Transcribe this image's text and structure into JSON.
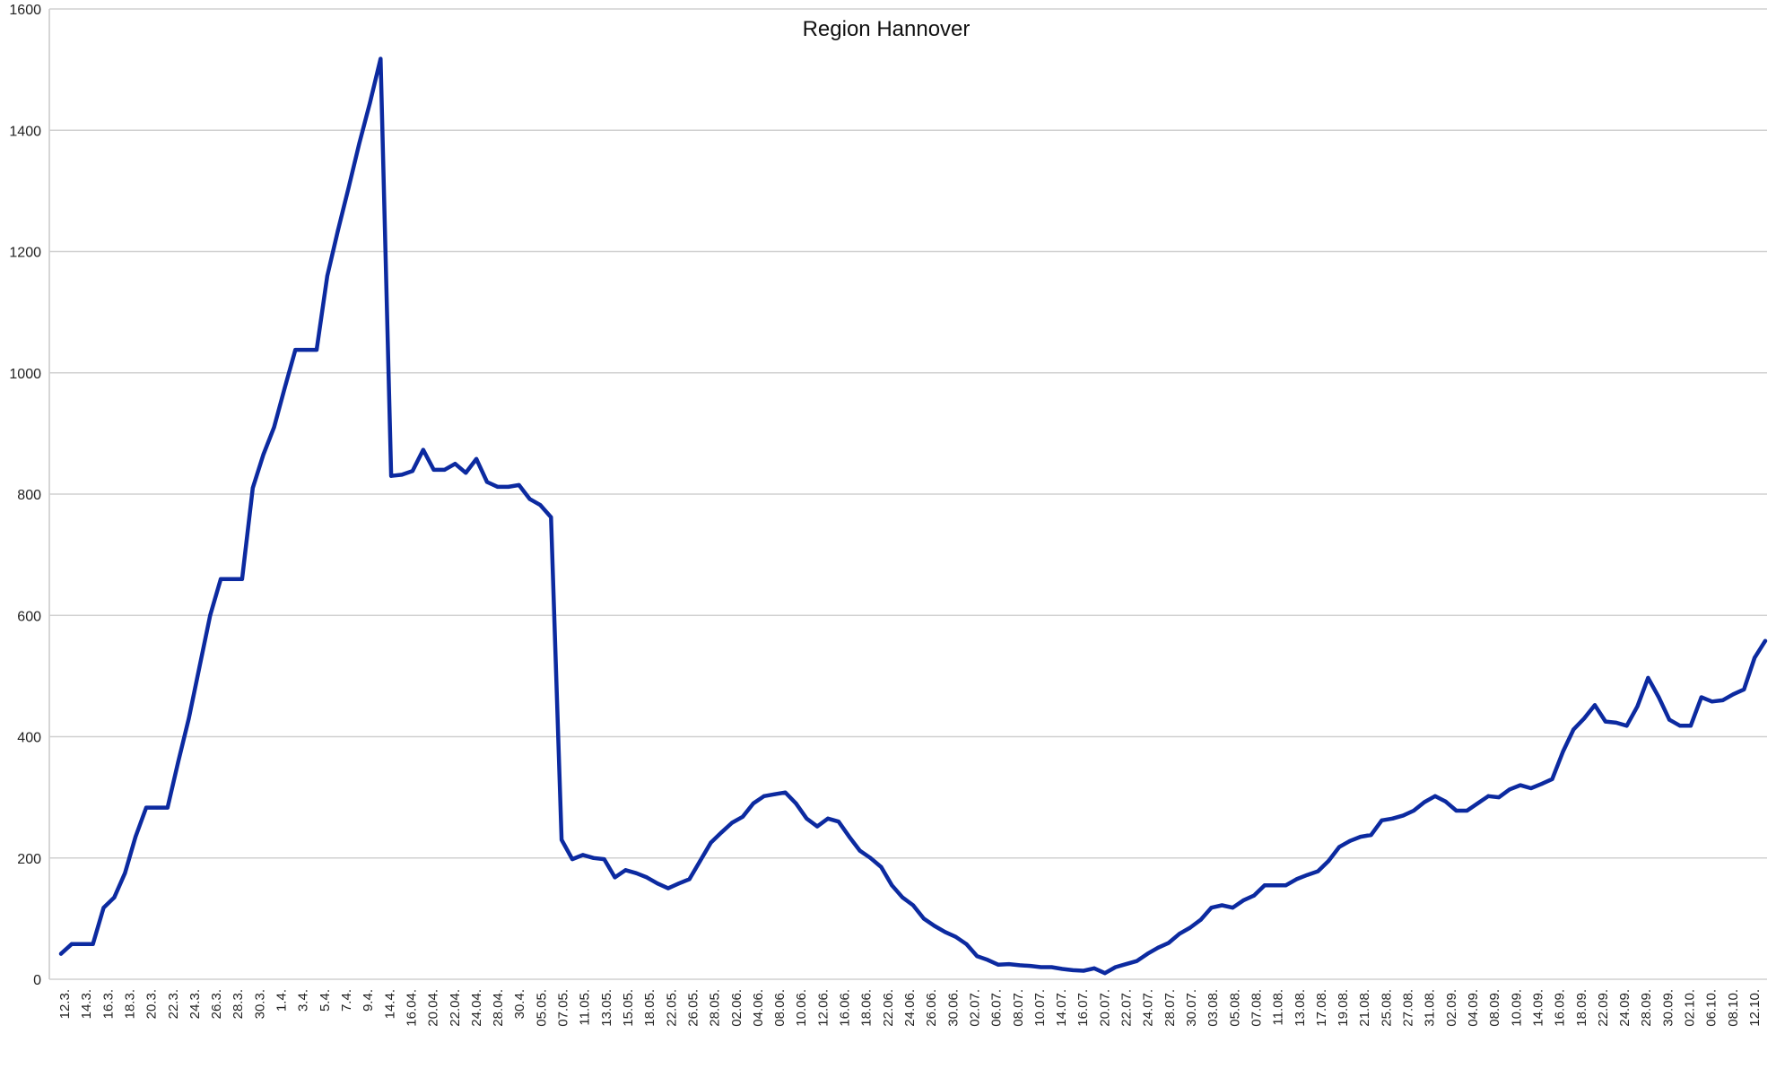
{
  "chart_data": {
    "type": "line",
    "title": "Region Hannover",
    "xlabel": "",
    "ylabel": "",
    "ylim": [
      0,
      1600
    ],
    "yticks": [
      0,
      200,
      400,
      600,
      800,
      1000,
      1200,
      1400,
      1600
    ],
    "grid": true,
    "legend": "none",
    "line_color": "#0c2aa0",
    "x_tick_labels": [
      "12.3.",
      "14.3.",
      "16.3.",
      "18.3.",
      "20.3.",
      "22.3.",
      "24.3.",
      "26.3.",
      "28.3.",
      "30.3.",
      "1.4.",
      "3.4.",
      "5.4.",
      "7.4.",
      "9.4.",
      "14.4.",
      "16.04.",
      "20.04.",
      "22.04.",
      "24.04.",
      "28.04.",
      "30.4.",
      "05.05.",
      "07.05.",
      "11.05.",
      "13.05.",
      "15.05.",
      "18.05.",
      "22.05.",
      "26.05.",
      "28.05.",
      "02.06.",
      "04.06.",
      "08.06.",
      "10.06.",
      "12.06.",
      "16.06.",
      "18.06.",
      "22.06.",
      "24.06.",
      "26.06.",
      "30.06.",
      "02.07.",
      "06.07.",
      "08.07.",
      "10.07.",
      "14.07.",
      "16.07.",
      "20.07.",
      "22.07.",
      "24.07.",
      "28.07.",
      "30.07.",
      "03.08.",
      "05.08.",
      "07.08.",
      "11.08.",
      "13.08.",
      "17.08.",
      "19.08.",
      "21.08.",
      "25.08.",
      "27.08.",
      "31.08.",
      "02.09.",
      "04.09.",
      "08.09.",
      "10.09.",
      "14.09.",
      "16.09.",
      "18.09.",
      "22.09.",
      "24.09.",
      "28.09.",
      "30.09.",
      "02.10.",
      "06.10.",
      "08.10.",
      "12.10."
    ],
    "series": [
      {
        "values": [
          42,
          58,
          58,
          58,
          118,
          135,
          175,
          235,
          283,
          283,
          283,
          358,
          430,
          515,
          600,
          660,
          660,
          660,
          810,
          865,
          910,
          975,
          1038,
          1038,
          1038,
          1160,
          1235,
          1305,
          1378,
          1445,
          1518,
          830,
          832,
          838,
          873,
          840,
          840,
          850,
          835,
          858,
          820,
          812,
          812,
          815,
          792,
          782,
          762,
          230,
          198,
          205,
          200,
          198,
          168,
          180,
          175,
          168,
          158,
          150,
          158,
          165,
          195,
          225,
          242,
          258,
          268,
          290,
          302,
          305,
          308,
          290,
          265,
          252,
          265,
          260,
          235,
          212,
          200,
          185,
          155,
          135,
          122,
          100,
          88,
          78,
          70,
          58,
          38,
          32,
          24,
          25,
          23,
          22,
          20,
          20,
          17,
          15,
          14,
          18,
          10,
          20,
          25,
          30,
          42,
          52,
          60,
          75,
          85,
          98,
          118,
          122,
          118,
          130,
          138,
          155,
          155,
          155,
          165,
          172,
          178,
          195,
          218,
          228,
          235,
          238,
          262,
          265,
          270,
          278,
          292,
          302,
          293,
          278,
          278,
          290,
          302,
          300,
          313,
          320,
          315,
          322,
          330,
          375,
          412,
          430,
          452,
          425,
          423,
          418,
          450,
          497,
          465,
          428,
          418,
          418,
          465,
          458,
          460,
          470,
          478,
          530,
          558
        ]
      }
    ]
  }
}
